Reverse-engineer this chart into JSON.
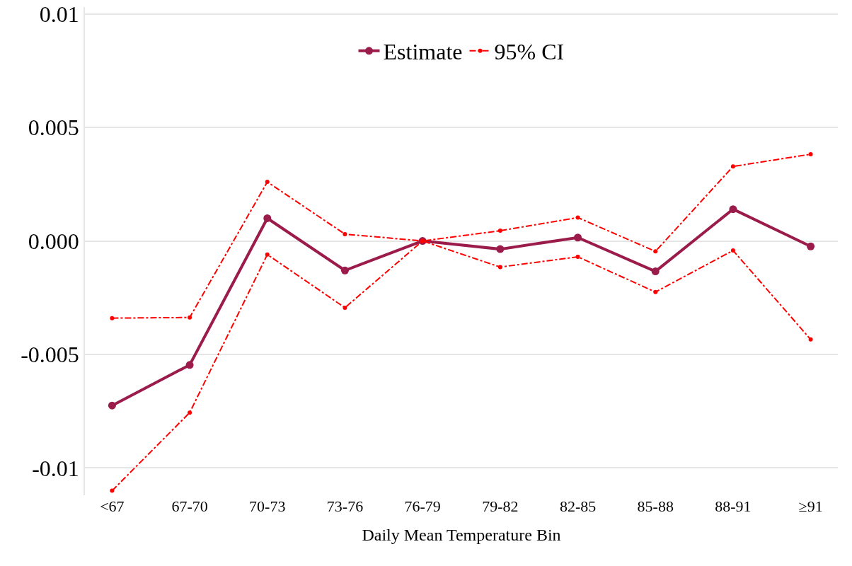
{
  "chart_data": {
    "type": "line",
    "xlabel": "Daily Mean Temperature Bin",
    "categories": [
      "<67",
      "67-70",
      "70-73",
      "73-76",
      "76-79",
      "79-82",
      "82-85",
      "85-88",
      "88-91",
      "≥91"
    ],
    "series": [
      {
        "name": "Estimate",
        "color": "#9b1b4b",
        "line_style": "solid",
        "values": [
          -0.00725,
          -0.00546,
          0.001,
          -0.0013,
          0,
          -0.00036,
          0.00015,
          -0.00134,
          0.0014,
          -0.00024
        ]
      },
      {
        "name": "95% CI",
        "color": "#ff0000",
        "line_style": "dashed",
        "values": [
          -0.0034,
          -0.00337,
          0.0026,
          0.0003,
          0,
          0.00045,
          0.00103,
          -0.00046,
          0.00328,
          0.00382
        ]
      },
      {
        "color": "#ff0000",
        "line_style": "dashed",
        "values": [
          -0.011,
          -0.00756,
          -0.0006,
          -0.00294,
          0,
          -0.00115,
          -0.0007,
          -0.00225,
          -0.00042,
          -0.00434
        ]
      }
    ],
    "ylim": [
      -0.0112,
      0.0103
    ],
    "yticks": [
      -0.01,
      -0.005,
      {
        "value": 0,
        "label": "0.000"
      },
      0.005,
      0.01
    ],
    "grid": "y",
    "legend": "top",
    "marker": "circle"
  }
}
